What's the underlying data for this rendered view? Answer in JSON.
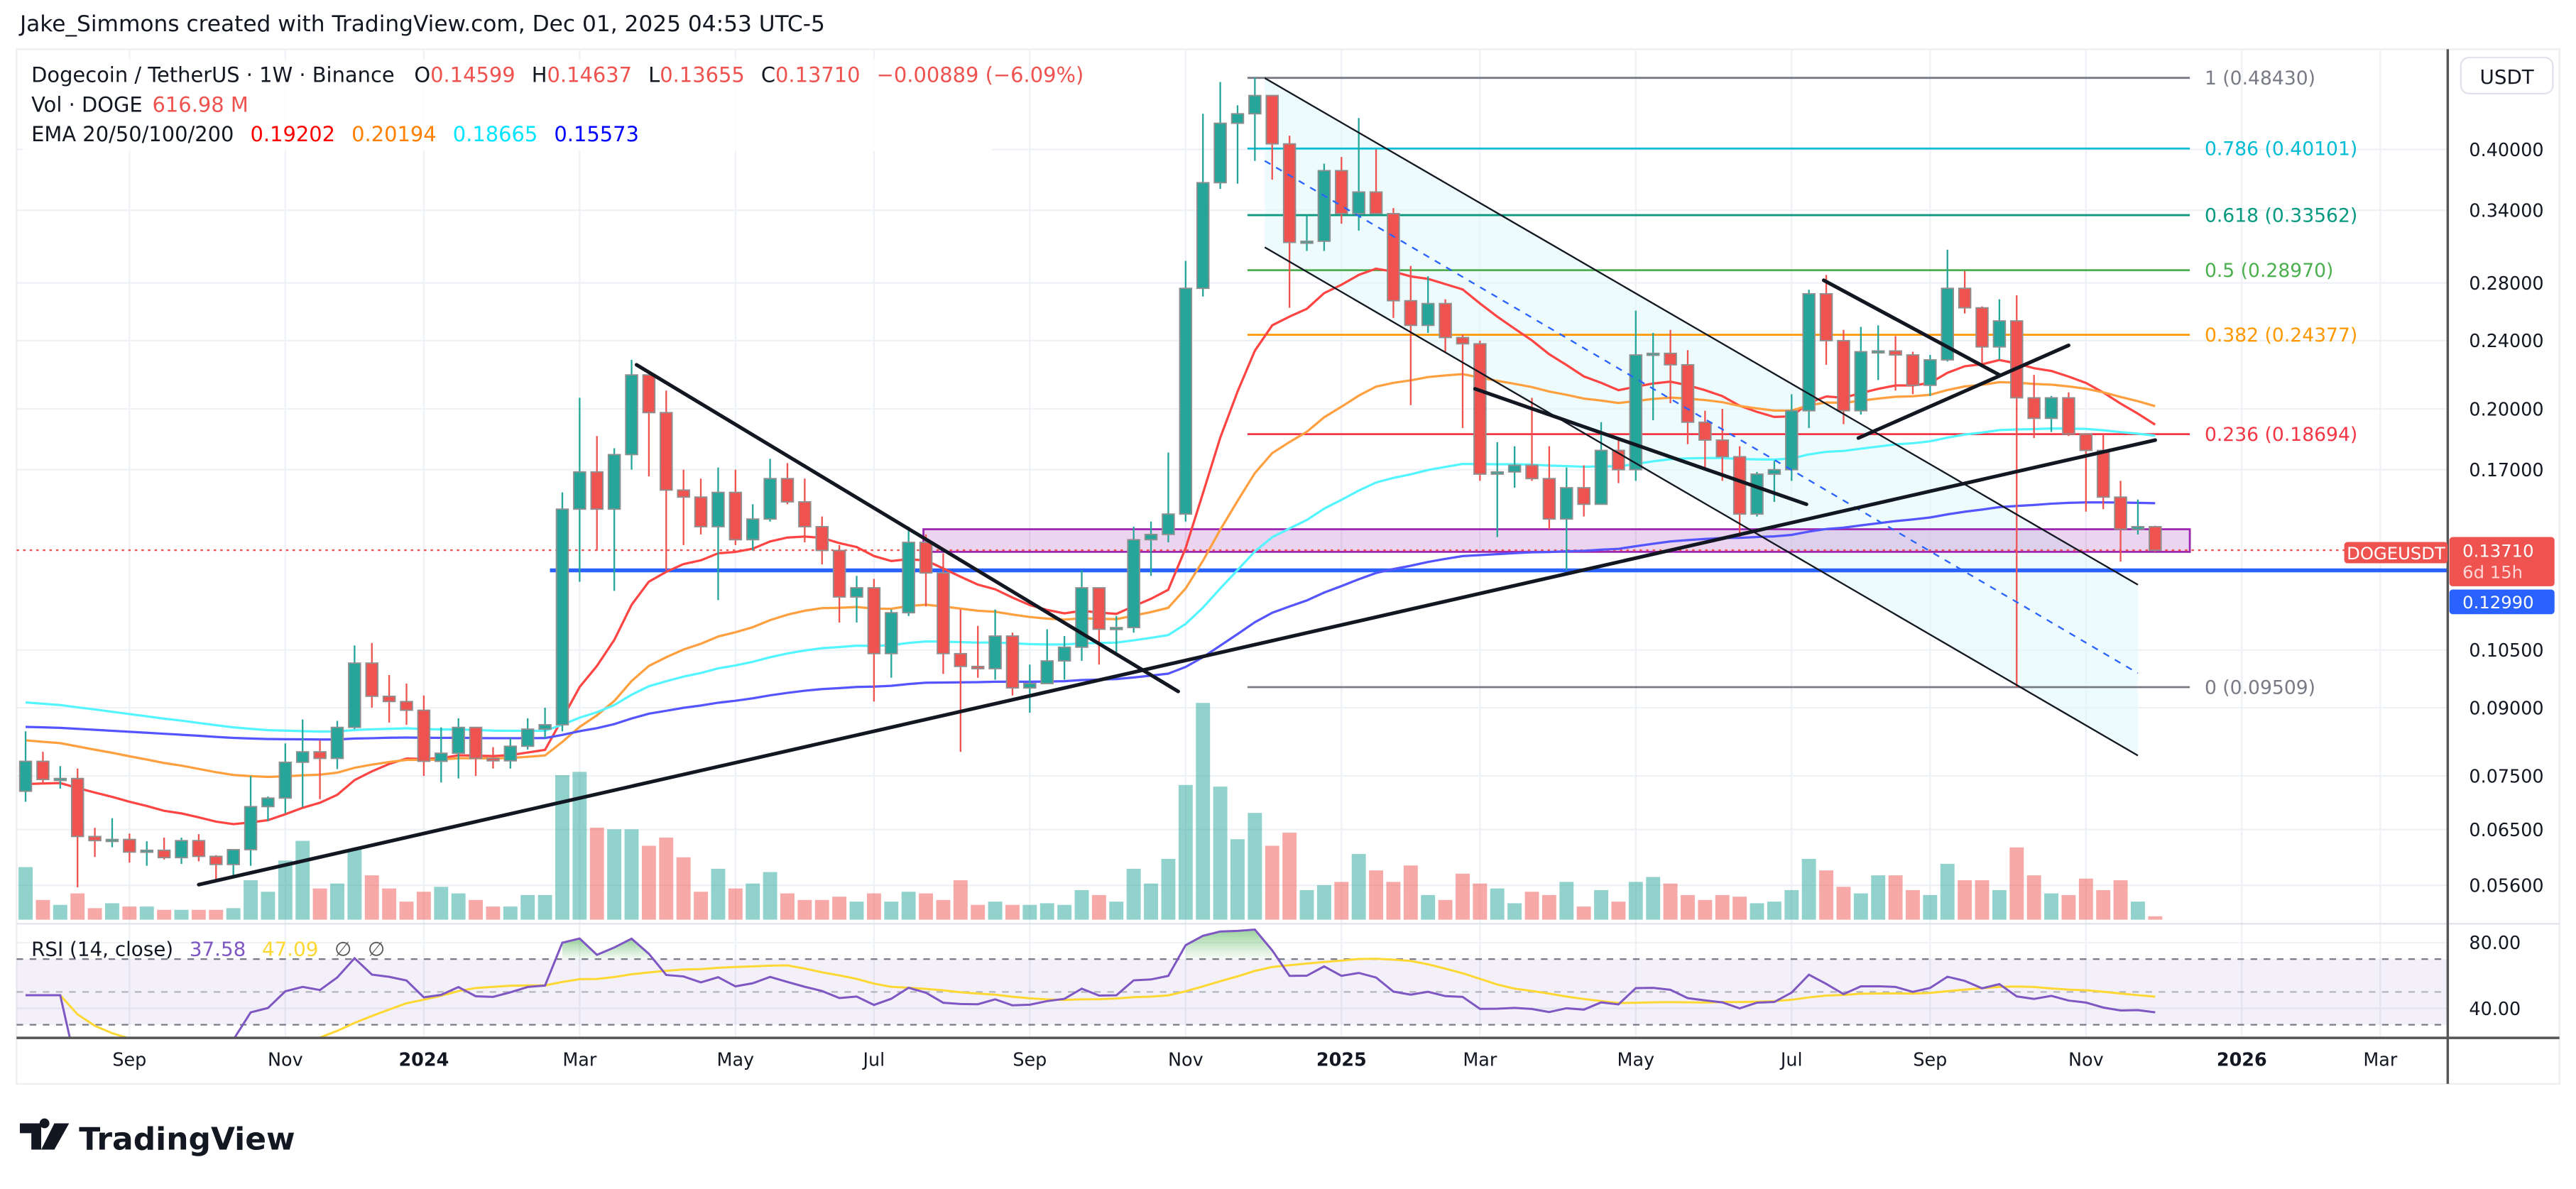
{
  "header": {
    "credit": "Jake_Simmons created with TradingView.com, Dec 01, 2025 04:53 UTC-5"
  },
  "legend": {
    "symbol": "Dogecoin / TetherUS · 1W · Binance",
    "o_label": "O",
    "o": "0.14599",
    "h_label": "H",
    "h": "0.14637",
    "l_label": "L",
    "l": "0.13655",
    "c_label": "C",
    "c": "0.13710",
    "change": "−0.00889 (−6.09%)",
    "vol_label": "Vol · DOGE",
    "vol": "616.98 M",
    "ema_label": "EMA 20/50/100/200",
    "ema_values": [
      "0.19202",
      "0.20194",
      "0.18665",
      "0.15573"
    ]
  },
  "rsi_legend": {
    "label": "RSI (14, close)",
    "value": "37.58",
    "ma": "47.09",
    "extra1": "∅",
    "extra2": "∅"
  },
  "price_axis": {
    "currency": "USDT",
    "ticks": [
      {
        "value": 0.4,
        "text": "0.40000"
      },
      {
        "value": 0.34,
        "text": "0.34000"
      },
      {
        "value": 0.28,
        "text": "0.28000"
      },
      {
        "value": 0.24,
        "text": "0.24000"
      },
      {
        "value": 0.2,
        "text": "0.20000"
      },
      {
        "value": 0.17,
        "text": "0.17000"
      },
      {
        "value": 0.105,
        "text": "0.10500"
      },
      {
        "value": 0.09,
        "text": "0.09000"
      },
      {
        "value": 0.075,
        "text": "0.07500"
      },
      {
        "value": 0.065,
        "text": "0.06500"
      },
      {
        "value": 0.056,
        "text": "0.05600"
      }
    ],
    "rsi_ticks": [
      {
        "value": 80,
        "text": "80.00"
      },
      {
        "value": 40,
        "text": "40.00"
      }
    ]
  },
  "tags": {
    "symbol": "DOGEUSDT",
    "last": "0.13710",
    "countdown": "6d 15h",
    "line": "0.12990"
  },
  "time_axis": {
    "labels": [
      {
        "text": "Sep",
        "date": "2023-09-01"
      },
      {
        "text": "Nov",
        "date": "2023-11-01"
      },
      {
        "text": "2024",
        "date": "2024-01-01"
      },
      {
        "text": "Mar",
        "date": "2024-03-01"
      },
      {
        "text": "May",
        "date": "2024-05-01"
      },
      {
        "text": "Jul",
        "date": "2024-07-01"
      },
      {
        "text": "Sep",
        "date": "2024-09-01"
      },
      {
        "text": "Nov",
        "date": "2024-11-01"
      },
      {
        "text": "2025",
        "date": "2025-01-01"
      },
      {
        "text": "Mar",
        "date": "2025-03-01"
      },
      {
        "text": "May",
        "date": "2025-05-01"
      },
      {
        "text": "Jul",
        "date": "2025-07-01"
      },
      {
        "text": "Sep",
        "date": "2025-09-01"
      },
      {
        "text": "Nov",
        "date": "2025-11-01"
      },
      {
        "text": "2026",
        "date": "2026-01-01"
      },
      {
        "text": "Mar",
        "date": "2026-03-01"
      }
    ]
  },
  "fib": {
    "from": "2024-11-29",
    "to": "2025-12-15",
    "levels": [
      {
        "ratio": "1",
        "price": 0.4843,
        "text": "1 (0.48430)",
        "color": "#787b86"
      },
      {
        "ratio": "0.786",
        "price": 0.40101,
        "text": "0.786 (0.40101)",
        "color": "#00bcd4"
      },
      {
        "ratio": "0.618",
        "price": 0.33562,
        "text": "0.618 (0.33562)",
        "color": "#089981"
      },
      {
        "ratio": "0.5",
        "price": 0.2897,
        "text": "0.5 (0.28970)",
        "color": "#4caf50"
      },
      {
        "ratio": "0.382",
        "price": 0.24377,
        "text": "0.382 (0.24377)",
        "color": "#ff9800"
      },
      {
        "ratio": "0.236",
        "price": 0.18694,
        "text": "0.236 (0.18694)",
        "color": "#f23645"
      },
      {
        "ratio": "0",
        "price": 0.09509,
        "text": "0 (0.09509)",
        "color": "#787b86"
      }
    ]
  },
  "drawings": {
    "support_line": {
      "price": 0.1299,
      "from": "2024-02-21",
      "color": "#2962ff"
    },
    "zone": {
      "from": "2024-07-21",
      "to": "2025-12-15",
      "top": 0.145,
      "bottom": 0.1365,
      "color": "#9c27b0"
    },
    "trendlines": [
      {
        "from": [
          "2023-10-02",
          0.0561
        ],
        "to": [
          "2025-12-01",
          0.184
        ]
      },
      {
        "from": [
          "2024-03-27",
          0.225
        ],
        "to": [
          "2024-11-01",
          0.094
        ]
      },
      {
        "from": [
          "2025-03-01",
          0.211
        ],
        "to": [
          "2025-07-13",
          0.155
        ]
      },
      {
        "from": [
          "2025-07-20",
          0.282
        ],
        "to": [
          "2025-09-29",
          0.219
        ]
      },
      {
        "from": [
          "2025-08-03",
          0.185
        ],
        "to": [
          "2025-10-27",
          0.237
        ]
      }
    ],
    "channel": {
      "from": "2024-12-06",
      "to": "2025-11-24",
      "upper": [
        0.484,
        0.125
      ],
      "middle": [
        0.388,
        0.0987
      ],
      "lower": [
        0.308,
        0.0792
      ],
      "fill": "#e0f7fa"
    }
  },
  "colors": {
    "up": "#26a69a",
    "down": "#ef5350",
    "border": "#8f8f8f",
    "rsi": "#7e57c2",
    "rsi_ma": "#fdd835"
  },
  "footer": {
    "logo": "TradingView"
  },
  "chart_data": {
    "type": "candlestick",
    "interval": "1W",
    "start_week": "2023-07-24",
    "scale": "log",
    "grid": true,
    "ohlc": [
      [
        0.072,
        0.0845,
        0.07,
        0.078
      ],
      [
        0.078,
        0.08,
        0.0735,
        0.0743
      ],
      [
        0.0743,
        0.077,
        0.0725,
        0.0745
      ],
      [
        0.0745,
        0.0765,
        0.0557,
        0.0638
      ],
      [
        0.0638,
        0.0653,
        0.0604,
        0.0631
      ],
      [
        0.0631,
        0.067,
        0.062,
        0.0633
      ],
      [
        0.0633,
        0.0643,
        0.0595,
        0.0612
      ],
      [
        0.0612,
        0.063,
        0.059,
        0.0615
      ],
      [
        0.0615,
        0.0636,
        0.06,
        0.0603
      ],
      [
        0.0603,
        0.0636,
        0.0593,
        0.0631
      ],
      [
        0.0631,
        0.0642,
        0.0597,
        0.0605
      ],
      [
        0.0605,
        0.0607,
        0.0566,
        0.0592
      ],
      [
        0.0592,
        0.0616,
        0.0572,
        0.0616
      ],
      [
        0.0616,
        0.075,
        0.059,
        0.0691
      ],
      [
        0.0691,
        0.071,
        0.0665,
        0.0707
      ],
      [
        0.0707,
        0.0818,
        0.0679,
        0.0778
      ],
      [
        0.0778,
        0.0872,
        0.069,
        0.08
      ],
      [
        0.08,
        0.0825,
        0.0705,
        0.0786
      ],
      [
        0.0786,
        0.0869,
        0.0764,
        0.0854
      ],
      [
        0.0854,
        0.1063,
        0.085,
        0.1014
      ],
      [
        0.1014,
        0.107,
        0.09,
        0.0928
      ],
      [
        0.0928,
        0.0982,
        0.0865,
        0.0915
      ],
      [
        0.0915,
        0.096,
        0.086,
        0.0894
      ],
      [
        0.0894,
        0.093,
        0.075,
        0.078
      ],
      [
        0.078,
        0.0854,
        0.0737,
        0.0797
      ],
      [
        0.0797,
        0.0875,
        0.0745,
        0.0854
      ],
      [
        0.0854,
        0.0854,
        0.075,
        0.0786
      ],
      [
        0.0786,
        0.081,
        0.0765,
        0.0781
      ],
      [
        0.0781,
        0.083,
        0.0765,
        0.0812
      ],
      [
        0.0812,
        0.0875,
        0.0805,
        0.085
      ],
      [
        0.085,
        0.09,
        0.083,
        0.086
      ],
      [
        0.086,
        0.16,
        0.0845,
        0.153
      ],
      [
        0.153,
        0.206,
        0.126,
        0.169
      ],
      [
        0.169,
        0.186,
        0.137,
        0.153
      ],
      [
        0.153,
        0.18,
        0.123,
        0.177
      ],
      [
        0.177,
        0.228,
        0.17,
        0.219
      ],
      [
        0.219,
        0.219,
        0.167,
        0.198
      ],
      [
        0.198,
        0.21,
        0.13,
        0.161
      ],
      [
        0.161,
        0.17,
        0.139,
        0.158
      ],
      [
        0.158,
        0.166,
        0.143,
        0.146
      ],
      [
        0.146,
        0.171,
        0.12,
        0.16
      ],
      [
        0.16,
        0.17,
        0.139,
        0.141
      ],
      [
        0.141,
        0.155,
        0.137,
        0.149
      ],
      [
        0.149,
        0.175,
        0.148,
        0.166
      ],
      [
        0.166,
        0.173,
        0.155,
        0.156
      ],
      [
        0.156,
        0.166,
        0.14,
        0.146
      ],
      [
        0.146,
        0.15,
        0.132,
        0.137
      ],
      [
        0.137,
        0.139,
        0.113,
        0.121
      ],
      [
        0.121,
        0.128,
        0.113,
        0.124
      ],
      [
        0.124,
        0.127,
        0.0915,
        0.104
      ],
      [
        0.104,
        0.117,
        0.0975,
        0.116
      ],
      [
        0.116,
        0.146,
        0.115,
        0.14
      ],
      [
        0.14,
        0.143,
        0.118,
        0.129
      ],
      [
        0.129,
        0.136,
        0.0985,
        0.104
      ],
      [
        0.104,
        0.117,
        0.08,
        0.1005
      ],
      [
        0.1005,
        0.112,
        0.0975,
        0.0999
      ],
      [
        0.0999,
        0.117,
        0.097,
        0.109
      ],
      [
        0.109,
        0.11,
        0.093,
        0.0949
      ],
      [
        0.0949,
        0.101,
        0.0888,
        0.096
      ],
      [
        0.096,
        0.111,
        0.096,
        0.102
      ],
      [
        0.102,
        0.109,
        0.097,
        0.1058
      ],
      [
        0.1058,
        0.13,
        0.102,
        0.124
      ],
      [
        0.124,
        0.124,
        0.101,
        0.111
      ],
      [
        0.111,
        0.115,
        0.104,
        0.1115
      ],
      [
        0.1115,
        0.146,
        0.11,
        0.141
      ],
      [
        0.141,
        0.148,
        0.128,
        0.143
      ],
      [
        0.143,
        0.178,
        0.14,
        0.151
      ],
      [
        0.151,
        0.297,
        0.148,
        0.276
      ],
      [
        0.276,
        0.44,
        0.27,
        0.366
      ],
      [
        0.366,
        0.479,
        0.36,
        0.429
      ],
      [
        0.429,
        0.45,
        0.365,
        0.44
      ],
      [
        0.44,
        0.4843,
        0.388,
        0.462
      ],
      [
        0.462,
        0.462,
        0.369,
        0.406
      ],
      [
        0.406,
        0.415,
        0.262,
        0.312
      ],
      [
        0.312,
        0.336,
        0.305,
        0.313
      ],
      [
        0.313,
        0.385,
        0.305,
        0.378
      ],
      [
        0.378,
        0.392,
        0.328,
        0.337
      ],
      [
        0.337,
        0.435,
        0.322,
        0.357
      ],
      [
        0.357,
        0.4,
        0.337,
        0.337
      ],
      [
        0.337,
        0.342,
        0.255,
        0.267
      ],
      [
        0.267,
        0.293,
        0.202,
        0.25
      ],
      [
        0.25,
        0.285,
        0.245,
        0.265
      ],
      [
        0.265,
        0.268,
        0.233,
        0.242
      ],
      [
        0.242,
        0.244,
        0.19,
        0.238
      ],
      [
        0.238,
        0.24,
        0.165,
        0.168
      ],
      [
        0.168,
        0.183,
        0.142,
        0.169
      ],
      [
        0.169,
        0.181,
        0.162,
        0.172
      ],
      [
        0.172,
        0.206,
        0.165,
        0.166
      ],
      [
        0.166,
        0.181,
        0.145,
        0.149
      ],
      [
        0.149,
        0.171,
        0.13,
        0.162
      ],
      [
        0.162,
        0.172,
        0.15,
        0.155
      ],
      [
        0.155,
        0.193,
        0.155,
        0.179
      ],
      [
        0.179,
        0.184,
        0.164,
        0.17
      ],
      [
        0.17,
        0.26,
        0.165,
        0.231
      ],
      [
        0.231,
        0.245,
        0.194,
        0.232
      ],
      [
        0.232,
        0.247,
        0.203,
        0.225
      ],
      [
        0.225,
        0.234,
        0.182,
        0.193
      ],
      [
        0.193,
        0.199,
        0.171,
        0.184
      ],
      [
        0.184,
        0.2,
        0.165,
        0.176
      ],
      [
        0.176,
        0.181,
        0.142,
        0.151
      ],
      [
        0.151,
        0.169,
        0.15,
        0.168
      ],
      [
        0.168,
        0.174,
        0.156,
        0.17
      ],
      [
        0.17,
        0.208,
        0.165,
        0.199
      ],
      [
        0.199,
        0.275,
        0.19,
        0.272
      ],
      [
        0.272,
        0.286,
        0.225,
        0.24
      ],
      [
        0.24,
        0.247,
        0.192,
        0.199
      ],
      [
        0.199,
        0.249,
        0.197,
        0.233
      ],
      [
        0.233,
        0.25,
        0.216,
        0.2335
      ],
      [
        0.2335,
        0.243,
        0.21,
        0.231
      ],
      [
        0.231,
        0.233,
        0.208,
        0.213
      ],
      [
        0.213,
        0.231,
        0.207,
        0.228
      ],
      [
        0.228,
        0.306,
        0.227,
        0.276
      ],
      [
        0.276,
        0.289,
        0.258,
        0.262
      ],
      [
        0.262,
        0.263,
        0.226,
        0.236
      ],
      [
        0.236,
        0.268,
        0.228,
        0.253
      ],
      [
        0.253,
        0.271,
        0.0951,
        0.206
      ],
      [
        0.206,
        0.219,
        0.185,
        0.195
      ],
      [
        0.195,
        0.207,
        0.188,
        0.206
      ],
      [
        0.206,
        0.209,
        0.186,
        0.187
      ],
      [
        0.187,
        0.187,
        0.152,
        0.179
      ],
      [
        0.179,
        0.187,
        0.153,
        0.158
      ],
      [
        0.158,
        0.165,
        0.133,
        0.145
      ],
      [
        0.145,
        0.157,
        0.143,
        0.14599
      ],
      [
        0.14599,
        0.14637,
        0.13655,
        0.1371
      ]
    ],
    "volume_millions": [
      9600,
      3600,
      2700,
      4800,
      2100,
      3000,
      2400,
      2400,
      1800,
      1800,
      1800,
      1800,
      2100,
      7200,
      5100,
      10800,
      14400,
      5700,
      6600,
      12900,
      8100,
      5700,
      3300,
      5100,
      6000,
      4800,
      3600,
      2400,
      2400,
      4500,
      4500,
      26400,
      27000,
      16800,
      16500,
      16500,
      13500,
      15000,
      11400,
      5100,
      9300,
      5700,
      6600,
      8700,
      4800,
      3600,
      3600,
      4200,
      3300,
      4800,
      3300,
      5100,
      4800,
      3600,
      7200,
      2700,
      3300,
      2700,
      2700,
      3000,
      2700,
      5400,
      4500,
      3300,
      9300,
      6600,
      11100,
      24600,
      39600,
      24300,
      14700,
      19500,
      13500,
      15900,
      5400,
      6300,
      6900,
      12000,
      9000,
      6900,
      9900,
      4500,
      3600,
      8400,
      6600,
      5700,
      3000,
      5100,
      4500,
      6900,
      2400,
      5400,
      3300,
      6900,
      7800,
      6600,
      4500,
      3600,
      4500,
      4200,
      3000,
      3300,
      5400,
      11100,
      9000,
      6000,
      4800,
      8100,
      8100,
      5400,
      4500,
      10200,
      7200,
      7200,
      5400,
      13200,
      8100,
      4800,
      4500,
      7500,
      5400,
      7200,
      3300,
      616.98
    ],
    "ema": [
      {
        "period": 20,
        "color": "#ff4444",
        "start_value": 0.0734,
        "last": 0.19202
      },
      {
        "period": 50,
        "color": "#ffa040",
        "start_value": 0.0825,
        "last": 0.20194
      },
      {
        "period": 100,
        "color": "#55f5ff",
        "start_value": 0.0913,
        "last": 0.18665
      },
      {
        "period": 200,
        "color": "#5555ff",
        "start_value": 0.0855,
        "last": 0.15573
      }
    ],
    "rsi": {
      "length": 14,
      "ma_length": 14,
      "bands": [
        70,
        50,
        30
      ],
      "last": 37.58,
      "ma_last": 47.09
    }
  }
}
